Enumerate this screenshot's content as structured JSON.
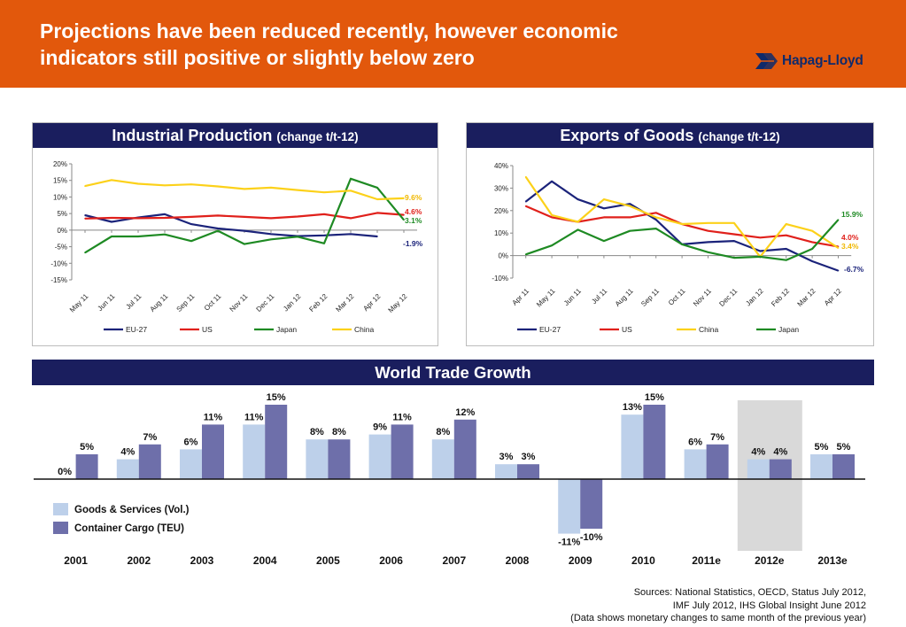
{
  "header": {
    "title_line1": "Projections have been reduced recently, however economic",
    "title_line2": "indicators still positive or slightly below zero",
    "logo_text": "Hapag-Lloyd",
    "background_color": "#e2580c"
  },
  "panels": {
    "ip_title": "Industrial Production",
    "ip_subtitle": "(change t/t-12)",
    "ex_title": "Exports of Goods",
    "ex_subtitle": "(change t/t-12)",
    "wt_title": "World Trade Growth"
  },
  "sources": {
    "line1": "Sources:  National Statistics, OECD, Status July 2012,",
    "line2": "IMF July 2012, IHS Global Insight June 2012",
    "line3": "(Data shows monetary changes to same month of the previous year)"
  },
  "chart_data": [
    {
      "type": "line",
      "title": "Industrial Production (change t/t-12)",
      "categories": [
        "May 11",
        "Jun 11",
        "Jul 11",
        "Aug 11",
        "Sep 11",
        "Oct 11",
        "Nov 11",
        "Dec 11",
        "Jan 12",
        "Feb 12",
        "Mar 12",
        "Apr 12",
        "May 12"
      ],
      "ylim": [
        -15,
        20
      ],
      "yticks": [
        -15,
        -10,
        -5,
        0,
        5,
        10,
        15,
        20
      ],
      "ytick_labels": [
        "-15%",
        "-10%",
        "-5%",
        "0%",
        "5%",
        "10%",
        "15%",
        "20%"
      ],
      "legend_position": "bottom",
      "series": [
        {
          "name": "EU-27",
          "color": "#1b237a",
          "values": [
            4.5,
            2.5,
            3.8,
            4.8,
            1.8,
            0.5,
            -0.2,
            -1.2,
            -1.8,
            -1.6,
            -1.2,
            -1.9,
            null
          ],
          "end_label": "-1.9%"
        },
        {
          "name": "US",
          "color": "#e0201b",
          "values": [
            3.5,
            3.7,
            3.6,
            3.7,
            4.0,
            4.4,
            4.0,
            3.6,
            4.1,
            4.8,
            3.6,
            5.2,
            4.6
          ],
          "end_label": "4.6%"
        },
        {
          "name": "Japan",
          "color": "#1e8a23",
          "values": [
            -6.8,
            -1.9,
            -1.9,
            -1.3,
            -3.3,
            -0.2,
            -4.2,
            -2.8,
            -2.0,
            -4.0,
            15.5,
            12.8,
            3.1
          ],
          "end_label": "3.1%"
        },
        {
          "name": "China",
          "color": "#fcd11a",
          "values": [
            13.3,
            15.1,
            14.0,
            13.5,
            13.8,
            13.2,
            12.4,
            12.8,
            12.1,
            11.4,
            11.9,
            9.3,
            9.6
          ],
          "end_label": "9.6%"
        }
      ]
    },
    {
      "type": "line",
      "title": "Exports of Goods (change t/t-12)",
      "categories": [
        "Apr 11",
        "May 11",
        "Jun 11",
        "Jul 11",
        "Aug 11",
        "Sep 11",
        "Oct 11",
        "Nov 11",
        "Dec 11",
        "Jan 12",
        "Feb 12",
        "Mar 12",
        "Apr 12"
      ],
      "ylim": [
        -10,
        40
      ],
      "yticks": [
        -10,
        0,
        10,
        20,
        30,
        40
      ],
      "ytick_labels": [
        "-10%",
        "0%",
        "10%",
        "20%",
        "30%",
        "40%"
      ],
      "legend_position": "bottom",
      "series": [
        {
          "name": "EU-27",
          "color": "#1b237a",
          "values": [
            24,
            33,
            25,
            21,
            23,
            16,
            5,
            6,
            6.5,
            2,
            3,
            -2.5,
            -6.7
          ],
          "end_label": "-6.7%"
        },
        {
          "name": "US",
          "color": "#e0201b",
          "values": [
            22,
            17,
            15,
            17,
            17,
            19,
            14,
            11,
            9.5,
            8,
            9,
            6,
            4.0
          ],
          "end_label": "4.0%"
        },
        {
          "name": "China",
          "color": "#fcd11a",
          "values": [
            35,
            18,
            15,
            25,
            22,
            17,
            14,
            14.5,
            14.5,
            -0.5,
            14,
            11,
            3.4
          ],
          "end_label": "3.4%"
        },
        {
          "name": "Japan",
          "color": "#1e8a23",
          "values": [
            0.5,
            4.5,
            11.5,
            6.5,
            11,
            12,
            5,
            1.5,
            -1,
            -0.5,
            -2,
            3,
            15.9
          ],
          "end_label": "15.9%"
        }
      ]
    },
    {
      "type": "bar",
      "title": "World Trade Growth",
      "categories": [
        "2001",
        "2002",
        "2003",
        "2004",
        "2005",
        "2006",
        "2007",
        "2008",
        "2009",
        "2010",
        "2011e",
        "2012e",
        "2013e"
      ],
      "highlight_category": "2012e",
      "series": [
        {
          "name": "Goods & Services (Vol.)",
          "color": "#bdd0ea",
          "values": [
            0,
            4,
            6,
            11,
            8,
            9,
            8,
            3,
            -11,
            13,
            6,
            4,
            5
          ],
          "labels": [
            "0%",
            "4%",
            "6%",
            "11%",
            "8%",
            "9%",
            "8%",
            "3%",
            "-11%",
            "13%",
            "6%",
            "4%",
            "5%"
          ]
        },
        {
          "name": "Container Cargo (TEU)",
          "color": "#6e6faa",
          "values": [
            5,
            7,
            11,
            15,
            8,
            11,
            12,
            3,
            -10,
            15,
            7,
            4,
            5
          ],
          "labels": [
            "5%",
            "7%",
            "11%",
            "15%",
            "8%",
            "11%",
            "12%",
            "3%",
            "-10%",
            "15%",
            "7%",
            "4%",
            "5%"
          ]
        }
      ],
      "legend_position": "left"
    }
  ]
}
